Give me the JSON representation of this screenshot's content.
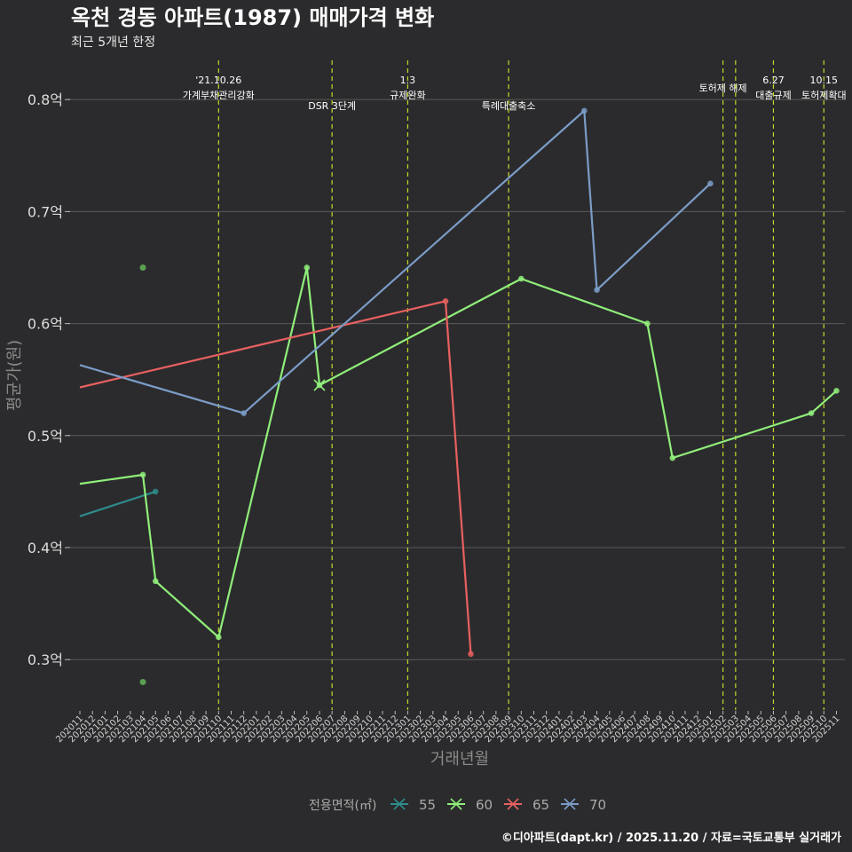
{
  "chart_data": {
    "type": "line",
    "title": "옥천 경동 아파트(1987) 매매가격 변화",
    "subtitle": "최근 5개년 한정",
    "xlabel": "거래년월",
    "ylabel": "평균가(원)",
    "ylim": [
      0.255,
      0.835
    ],
    "y_ticks": [
      {
        "value": 0.3,
        "label": "0.3억"
      },
      {
        "value": 0.4,
        "label": "0.4억"
      },
      {
        "value": 0.5,
        "label": "0.5억"
      },
      {
        "value": 0.6,
        "label": "0.6억"
      },
      {
        "value": 0.7,
        "label": "0.7억"
      },
      {
        "value": 0.8,
        "label": "0.8억"
      }
    ],
    "x_categories": [
      "202011",
      "202012",
      "202101",
      "202102",
      "202103",
      "202104",
      "202105",
      "202106",
      "202107",
      "202108",
      "202109",
      "202110",
      "202111",
      "202112",
      "202201",
      "202202",
      "202203",
      "202204",
      "202205",
      "202206",
      "202207",
      "202208",
      "202209",
      "202210",
      "202211",
      "202212",
      "202301",
      "202302",
      "202303",
      "202304",
      "202305",
      "202306",
      "202307",
      "202308",
      "202309",
      "202310",
      "202311",
      "202312",
      "202401",
      "202402",
      "202403",
      "202404",
      "202405",
      "202406",
      "202407",
      "202408",
      "202409",
      "202410",
      "202411",
      "202412",
      "202501",
      "202502",
      "202503",
      "202504",
      "202505",
      "202506",
      "202507",
      "202508",
      "202509",
      "202510",
      "202511"
    ],
    "events": [
      {
        "month": "202110",
        "lines": [
          "'21.10.26",
          "가계부채관리강화"
        ],
        "row": 0
      },
      {
        "month": "202207",
        "lines": [
          "DSR 3단계"
        ],
        "row": 1
      },
      {
        "month": "202301",
        "lines": [
          "1.3",
          "규제완화"
        ],
        "row": 0
      },
      {
        "month": "202309",
        "lines": [
          "특례대출축소"
        ],
        "row": 1
      },
      {
        "month": "202502",
        "lines": [
          "토허제 해제"
        ],
        "row": 0
      },
      {
        "month": "202503",
        "lines": [],
        "row": 0
      },
      {
        "month": "202506",
        "lines": [
          "6.27",
          "대출규제"
        ],
        "row": 0
      },
      {
        "month": "202510",
        "lines": [
          "10.15",
          "토허제확대"
        ],
        "row": 0
      }
    ],
    "series": [
      {
        "name": "55",
        "color": "#2e8b8b",
        "points": [
          [
            "202011",
            0.428
          ],
          [
            "202105",
            0.45
          ]
        ]
      },
      {
        "name": "60",
        "color": "#90ee7a",
        "points": [
          [
            "202011",
            0.457
          ],
          [
            "202104",
            0.465
          ],
          [
            "202105",
            0.37
          ],
          [
            "202110",
            0.32
          ],
          [
            "202205",
            0.65
          ],
          [
            "202206",
            0.545
          ],
          [
            "202310",
            0.64
          ],
          [
            "202408",
            0.6
          ],
          [
            "202410",
            0.48
          ],
          [
            "202509",
            0.52
          ],
          [
            "202511",
            0.54
          ]
        ]
      },
      {
        "name": "65",
        "color": "#e86060",
        "points": [
          [
            "202011",
            0.543
          ],
          [
            "202304",
            0.62
          ],
          [
            "202306",
            0.305
          ]
        ]
      },
      {
        "name": "70",
        "color": "#7b9cc7",
        "points": [
          [
            "202011",
            0.563
          ],
          [
            "202112",
            0.52
          ],
          [
            "202403",
            0.79
          ],
          [
            "202404",
            0.63
          ],
          [
            "202501",
            0.725
          ]
        ]
      }
    ],
    "scatter": [
      {
        "month": "202104",
        "value": 0.65,
        "color": "#5aa050"
      },
      {
        "month": "202104",
        "value": 0.28,
        "color": "#5aa050"
      }
    ],
    "legend_title": "전용면적(㎡)",
    "legend_position": "bottom",
    "caption": "©디아파트(dapt.kr) / 2025.11.20 / 자료=국토교통부 실거래가"
  }
}
